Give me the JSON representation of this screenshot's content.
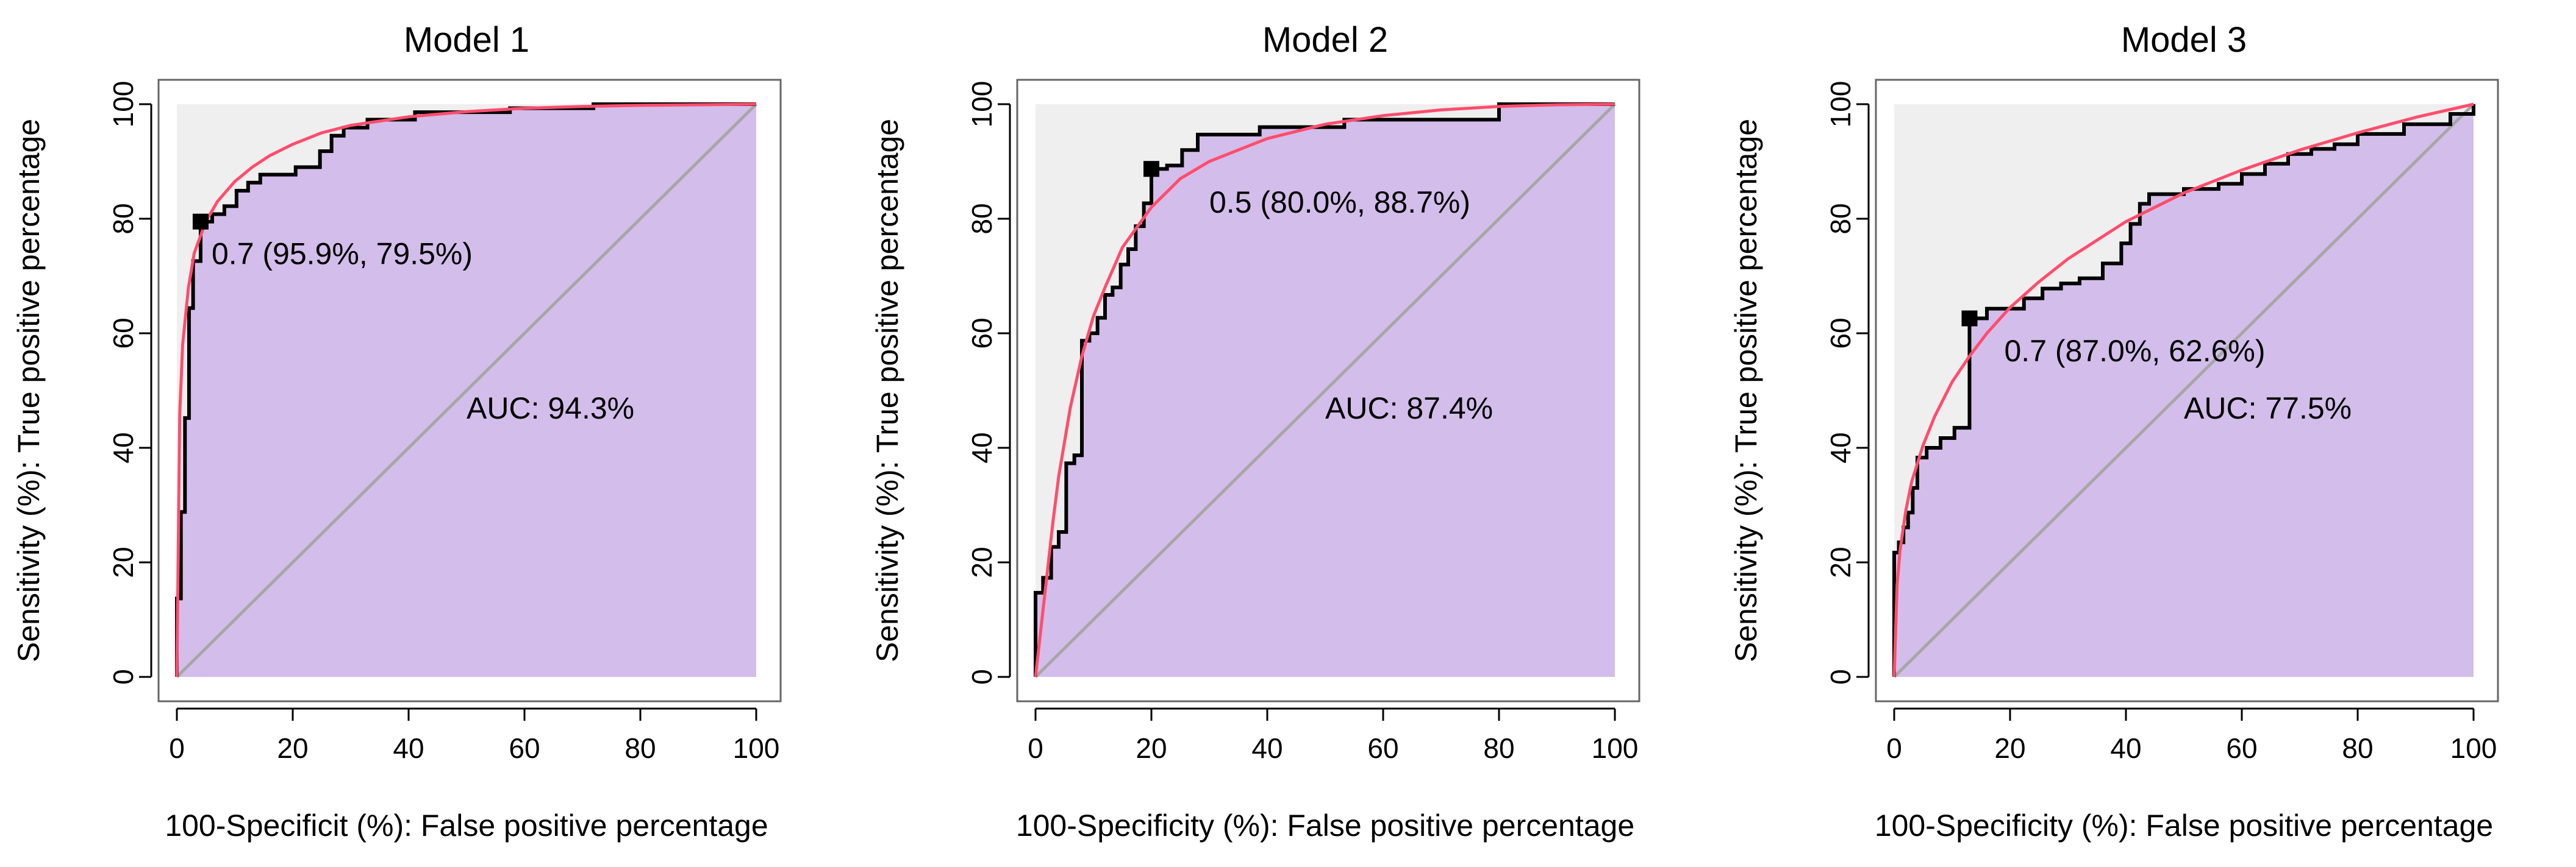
{
  "chart_data": [
    {
      "type": "line",
      "title": "Model 1",
      "xlabel": "100-Specificit (%): False positive percentage",
      "ylabel": "Sensitivity (%): True positive percentage",
      "xlim": [
        0,
        100
      ],
      "ylim": [
        0,
        100
      ],
      "xticks": [
        "0",
        "20",
        "40",
        "60",
        "80",
        "100"
      ],
      "yticks": [
        "0",
        "20",
        "40",
        "60",
        "80",
        "100"
      ],
      "auc_label": "AUC: 94.3%",
      "auc_label_pos": [
        50,
        47
      ],
      "threshold_label": "0.7 (95.9%, 79.5%)",
      "threshold_label_pos": [
        6,
        74
      ],
      "threshold_point": [
        4.1,
        79.5
      ],
      "colors": {
        "empirical": "#000000",
        "smoothed": "#ff4d6d",
        "auc_fill": "#d3bdea",
        "background": "#efefef",
        "diagonal": "#a6a6a6"
      },
      "series": [
        {
          "name": "Empirical ROC",
          "x": [
            0,
            0,
            0.7,
            0.7,
            1.4,
            1.4,
            2.1,
            2.1,
            2.8,
            2.8,
            4.1,
            4.1,
            6.1,
            6.1,
            8.2,
            8.2,
            10.3,
            10.3,
            12.3,
            12.3,
            14.4,
            14.4,
            16.4,
            16.4,
            20.5,
            20.5,
            24.7,
            24.7,
            26.7,
            26.7,
            28.8,
            28.8,
            32.9,
            32.9,
            41.1,
            41.1,
            57.5,
            57.5,
            71.9,
            71.9,
            100
          ],
          "y": [
            0,
            13.7,
            13.7,
            28.8,
            28.8,
            45.2,
            45.2,
            64.4,
            64.4,
            72.6,
            72.6,
            79.5,
            79.5,
            80.8,
            80.8,
            82.2,
            82.2,
            84.9,
            84.9,
            86.3,
            86.3,
            87.7,
            87.7,
            87.7,
            87.7,
            89,
            89,
            91.8,
            91.8,
            94.5,
            94.5,
            95.9,
            95.9,
            97.3,
            97.3,
            98.6,
            98.6,
            99.3,
            99.3,
            100,
            100
          ]
        },
        {
          "name": "Smoothed ROC",
          "x": [
            0,
            0.5,
            1,
            2,
            3,
            5,
            7,
            10,
            13,
            16,
            20,
            25,
            30,
            40,
            50,
            60,
            70,
            80,
            90,
            100
          ],
          "y": [
            0,
            46,
            58,
            68,
            74,
            79.5,
            83,
            86.5,
            89,
            91,
            93,
            95,
            96.3,
            97.8,
            98.7,
            99.3,
            99.6,
            99.8,
            99.9,
            100
          ]
        }
      ]
    },
    {
      "type": "line",
      "title": "Model 2",
      "xlabel": "100-Specificity (%): False positive percentage",
      "ylabel": "Sensitivity (%): True positive percentage",
      "xlim": [
        0,
        100
      ],
      "ylim": [
        0,
        100
      ],
      "xticks": [
        "0",
        "20",
        "40",
        "60",
        "80",
        "100"
      ],
      "yticks": [
        "0",
        "20",
        "40",
        "60",
        "80",
        "100"
      ],
      "auc_label": "AUC: 87.4%",
      "auc_label_pos": [
        50,
        47
      ],
      "threshold_label": "0.5 (80.0%, 88.7%)",
      "threshold_label_pos": [
        30,
        83
      ],
      "threshold_point": [
        20,
        88.7
      ],
      "colors": {
        "empirical": "#000000",
        "smoothed": "#ff4d6d",
        "auc_fill": "#d3bdea",
        "background": "#efefef",
        "diagonal": "#a6a6a6"
      },
      "series": [
        {
          "name": "Empirical ROC",
          "x": [
            0,
            0,
            1.3,
            1.3,
            2.7,
            2.7,
            4,
            4,
            5.3,
            5.3,
            6.7,
            6.7,
            8,
            8,
            9.3,
            9.3,
            10.7,
            10.7,
            12,
            12,
            13.3,
            13.3,
            14.7,
            14.7,
            16,
            16,
            17.3,
            17.3,
            18.7,
            18.7,
            20,
            20,
            22.7,
            22.7,
            25.3,
            25.3,
            28,
            28,
            38.7,
            38.7,
            53.3,
            53.3,
            80,
            80,
            100
          ],
          "y": [
            0,
            14.7,
            14.7,
            17.3,
            17.3,
            22.7,
            22.7,
            25.3,
            25.3,
            37.3,
            37.3,
            38.7,
            38.7,
            58.7,
            58.7,
            60,
            60,
            62.7,
            62.7,
            66.7,
            66.7,
            68,
            68,
            72,
            72,
            74.7,
            74.7,
            78.7,
            78.7,
            82.7,
            82.7,
            88.7,
            88.7,
            89.3,
            89.3,
            92,
            92,
            94.7,
            94.7,
            96,
            96,
            97.3,
            97.3,
            100,
            100
          ]
        },
        {
          "name": "Smoothed ROC",
          "x": [
            0,
            1,
            2,
            3,
            4,
            6,
            8,
            10,
            12,
            15,
            20,
            25,
            30,
            40,
            50,
            60,
            70,
            80,
            90,
            100
          ],
          "y": [
            0,
            9,
            18,
            27,
            35,
            47,
            56,
            63,
            68,
            75,
            82,
            87,
            90,
            94,
            96.5,
            98,
            99,
            99.6,
            99.9,
            100
          ]
        }
      ]
    },
    {
      "type": "line",
      "title": "Model 3",
      "xlabel": "100-Specificity (%): False positive percentage",
      "ylabel": "Sensitivity (%): True positive percentage",
      "xlim": [
        0,
        100
      ],
      "ylim": [
        0,
        100
      ],
      "xticks": [
        "0",
        "20",
        "40",
        "60",
        "80",
        "100"
      ],
      "yticks": [
        "0",
        "20",
        "40",
        "60",
        "80",
        "100"
      ],
      "auc_label": "AUC: 77.5%",
      "auc_label_pos": [
        50,
        47
      ],
      "threshold_label": "0.7 (87.0%, 62.6%)",
      "threshold_label_pos": [
        19,
        57
      ],
      "threshold_point": [
        13,
        62.6
      ],
      "colors": {
        "empirical": "#000000",
        "smoothed": "#ff4d6d",
        "auc_fill": "#d3bdea",
        "background": "#efefef",
        "diagonal": "#a6a6a6"
      },
      "series": [
        {
          "name": "Empirical ROC",
          "x": [
            0,
            0,
            0.8,
            0.8,
            1.6,
            1.6,
            2.4,
            2.4,
            3.2,
            3.2,
            4,
            4,
            5.6,
            5.6,
            8,
            8,
            10.4,
            10.4,
            13,
            13,
            16,
            16,
            19.2,
            19.2,
            22.4,
            22.4,
            25.6,
            25.6,
            28.8,
            28.8,
            32,
            32,
            36,
            36,
            39.2,
            39.2,
            40.8,
            40.8,
            42.4,
            42.4,
            44,
            44,
            50,
            50,
            56,
            56,
            60,
            60,
            64,
            64,
            68,
            68,
            72,
            72,
            76,
            76,
            80,
            80,
            88,
            88,
            96,
            96,
            100,
            100
          ],
          "y": [
            0,
            21.7,
            21.7,
            23.5,
            23.5,
            26.1,
            26.1,
            28.7,
            28.7,
            33,
            33,
            38.3,
            38.3,
            40,
            40,
            41.7,
            41.7,
            43.5,
            43.5,
            62.6,
            62.6,
            64.3,
            64.3,
            64.3,
            64.3,
            66.1,
            66.1,
            67.8,
            67.8,
            68.7,
            68.7,
            69.6,
            69.6,
            72.2,
            72.2,
            75.7,
            75.7,
            79.1,
            79.1,
            82.6,
            82.6,
            84.3,
            84.3,
            85.2,
            85.2,
            86.1,
            86.1,
            87.8,
            87.8,
            89.6,
            89.6,
            91.3,
            91.3,
            92.2,
            92.2,
            93,
            93,
            94.8,
            94.8,
            96.5,
            96.5,
            98.3,
            98.3,
            100
          ]
        },
        {
          "name": "Smoothed ROC",
          "x": [
            0,
            0.5,
            1,
            2,
            3,
            5,
            7,
            10,
            13,
            16,
            20,
            25,
            30,
            40,
            50,
            60,
            70,
            80,
            90,
            100
          ],
          "y": [
            0,
            16,
            22,
            29,
            34,
            40.5,
            45.5,
            51.5,
            56,
            60,
            64.5,
            69,
            73,
            79.5,
            84.5,
            88.5,
            92,
            95,
            97.7,
            100
          ]
        }
      ]
    }
  ]
}
